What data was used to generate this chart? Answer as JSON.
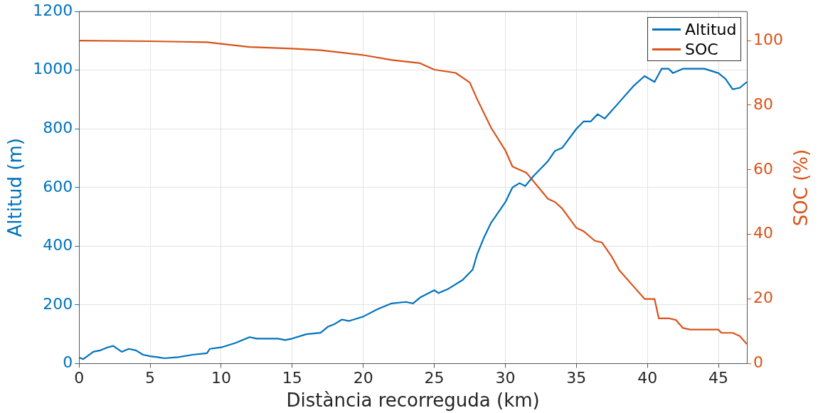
{
  "chart_data": {
    "type": "line",
    "xlabel": "Distància recorreguda (km)",
    "ylabel": "Altitud (m)",
    "y2label": "SOC (%)",
    "xlim": [
      0,
      47
    ],
    "xticks": [
      0,
      5,
      10,
      15,
      20,
      25,
      30,
      35,
      40,
      45
    ],
    "ylim": [
      0,
      1200
    ],
    "yticks": [
      0,
      200,
      400,
      600,
      800,
      1000,
      1200
    ],
    "y2lim": [
      0,
      109
    ],
    "y2ticks": [
      0,
      20,
      40,
      60,
      80,
      100
    ],
    "grid": true,
    "legend": "top right",
    "marker": "none",
    "line_style": "solid",
    "series": [
      {
        "name": "Altitud",
        "color": "#0072bd",
        "x": [
          0,
          0.3,
          1,
          1.5,
          2,
          2.4,
          3,
          3.5,
          4,
          4.5,
          5,
          5.5,
          6,
          7,
          8,
          9,
          9.2,
          10,
          11,
          12,
          12.5,
          14,
          14.5,
          15,
          16,
          17,
          17.5,
          18,
          18.5,
          19,
          20,
          21,
          22,
          23,
          23.5,
          24,
          25,
          25.3,
          26,
          27,
          27.7,
          28,
          28.5,
          29,
          30,
          30.5,
          31,
          31.4,
          32,
          33,
          33.5,
          34,
          35,
          35.5,
          36,
          36.5,
          37,
          38,
          39,
          39.8,
          40.5,
          41,
          41.5,
          41.8,
          42.5,
          44,
          45,
          45.5,
          46,
          46.5,
          47
        ],
        "values": [
          20,
          15,
          40,
          45,
          55,
          60,
          40,
          50,
          45,
          30,
          25,
          22,
          18,
          22,
          30,
          35,
          50,
          55,
          70,
          90,
          85,
          85,
          80,
          85,
          100,
          105,
          125,
          135,
          150,
          145,
          160,
          185,
          205,
          210,
          205,
          225,
          250,
          240,
          255,
          285,
          320,
          370,
          430,
          480,
          550,
          600,
          615,
          605,
          640,
          690,
          725,
          735,
          800,
          825,
          825,
          850,
          835,
          890,
          945,
          980,
          960,
          1005,
          1005,
          990,
          1005,
          1005,
          990,
          970,
          935,
          940,
          960
        ]
      },
      {
        "name": "SOC",
        "color": "#d95319",
        "axis": "y2",
        "x": [
          0,
          5,
          9,
          10,
          12,
          15,
          17,
          20,
          22,
          24,
          25,
          26.5,
          27.5,
          28,
          29,
          30,
          30.5,
          31,
          31.5,
          33,
          33.5,
          34,
          35,
          35.5,
          36.3,
          36.8,
          37.5,
          38,
          39,
          39.8,
          40.5,
          40.8,
          41.5,
          42,
          42.5,
          43,
          44,
          45,
          45.2,
          46,
          46.5,
          47
        ],
        "values": [
          100,
          99.8,
          99.5,
          99,
          98,
          97.5,
          97,
          95.5,
          94,
          93,
          91,
          90,
          87,
          82,
          73,
          66,
          61,
          60,
          59,
          51,
          50,
          48,
          42,
          41,
          38,
          37.5,
          33,
          29,
          24,
          20,
          20,
          14,
          14,
          13.5,
          11,
          10.5,
          10.5,
          10.5,
          9.5,
          9.5,
          8.5,
          6
        ]
      }
    ]
  }
}
